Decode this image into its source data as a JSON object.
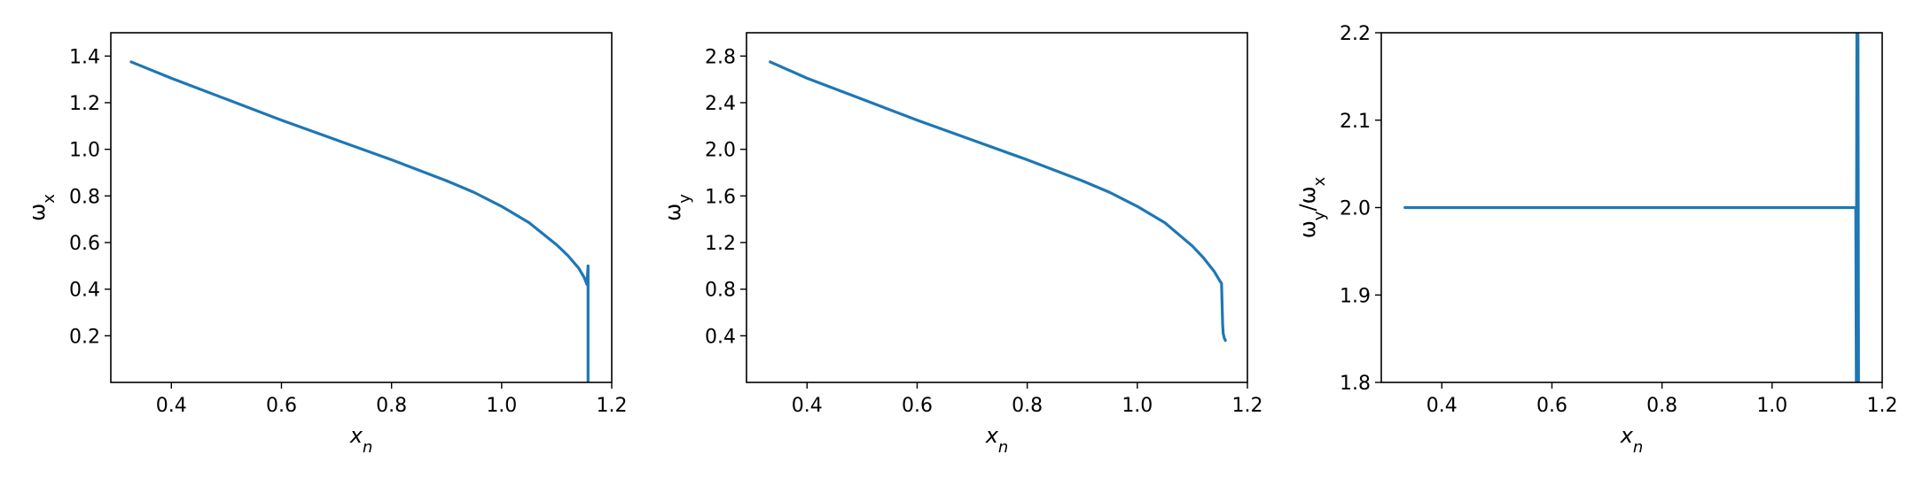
{
  "colors": {
    "series": "#1f77b4",
    "axes": "#000000",
    "background": "#ffffff"
  },
  "chart_data": [
    {
      "type": "line",
      "xlabel": "x_n",
      "ylabel": "ω_x",
      "xlim": [
        0.29,
        1.2
      ],
      "ylim": [
        0.0,
        1.5
      ],
      "xticks": [
        0.4,
        0.6,
        0.8,
        1.0,
        1.2
      ],
      "xtick_labels": [
        "0.4",
        "0.6",
        "0.8",
        "1.0",
        "1.2"
      ],
      "yticks": [
        0.2,
        0.4,
        0.6,
        0.8,
        1.0,
        1.2,
        1.4
      ],
      "ytick_labels": [
        "0.2",
        "0.4",
        "0.6",
        "0.8",
        "1.0",
        "1.2",
        "1.4"
      ],
      "grid": false,
      "series": [
        {
          "x": [
            0.327,
            0.4,
            0.5,
            0.6,
            0.7,
            0.8,
            0.9,
            0.95,
            1.0,
            1.05,
            1.1,
            1.12,
            1.14,
            1.15,
            1.155,
            1.157,
            1.157,
            1.157,
            1.157
          ],
          "y": [
            1.375,
            1.305,
            1.215,
            1.125,
            1.04,
            0.955,
            0.865,
            0.815,
            0.755,
            0.685,
            0.59,
            0.545,
            0.49,
            0.45,
            0.42,
            0.5,
            0.42,
            0.2,
            0.0
          ]
        }
      ]
    },
    {
      "type": "line",
      "xlabel": "x_n",
      "ylabel": "ω_y",
      "xlim": [
        0.29,
        1.2
      ],
      "ylim": [
        0.0,
        3.0
      ],
      "xticks": [
        0.4,
        0.6,
        0.8,
        1.0,
        1.2
      ],
      "xtick_labels": [
        "0.4",
        "0.6",
        "0.8",
        "1.0",
        "1.2"
      ],
      "yticks": [
        0.4,
        0.8,
        1.2,
        1.6,
        2.0,
        2.4,
        2.8
      ],
      "ytick_labels": [
        "0.4",
        "0.8",
        "1.2",
        "1.6",
        "2.0",
        "2.4",
        "2.8"
      ],
      "grid": false,
      "series": [
        {
          "x": [
            0.333,
            0.4,
            0.5,
            0.6,
            0.7,
            0.8,
            0.9,
            0.95,
            1.0,
            1.05,
            1.1,
            1.12,
            1.14,
            1.15,
            1.153,
            1.155,
            1.156,
            1.158,
            1.16
          ],
          "y": [
            2.75,
            2.61,
            2.43,
            2.25,
            2.08,
            1.91,
            1.73,
            1.63,
            1.51,
            1.37,
            1.17,
            1.07,
            0.95,
            0.87,
            0.85,
            0.5,
            0.42,
            0.38,
            0.36
          ]
        }
      ]
    },
    {
      "type": "line",
      "xlabel": "x_n",
      "ylabel": "ω_y/ω_x",
      "xlim": [
        0.29,
        1.2
      ],
      "ylim": [
        1.8,
        2.2
      ],
      "xticks": [
        0.4,
        0.6,
        0.8,
        1.0,
        1.2
      ],
      "xtick_labels": [
        "0.4",
        "0.6",
        "0.8",
        "1.0",
        "1.2"
      ],
      "yticks": [
        1.8,
        1.9,
        2.0,
        2.1,
        2.2
      ],
      "ytick_labels": [
        "1.8",
        "1.9",
        "2.0",
        "2.1",
        "2.2"
      ],
      "grid": false,
      "series": [
        {
          "x": [
            0.333,
            0.4,
            0.5,
            0.6,
            0.7,
            0.8,
            0.9,
            1.0,
            1.1,
            1.15,
            1.152,
            1.153,
            1.154,
            1.155,
            1.156,
            1.157
          ],
          "y": [
            2.0,
            2.0,
            2.0,
            2.0,
            2.0,
            2.0,
            2.0,
            2.0,
            2.0,
            2.0,
            2.0,
            1.8,
            2.2,
            1.8,
            2.2,
            1.8
          ]
        }
      ]
    }
  ]
}
